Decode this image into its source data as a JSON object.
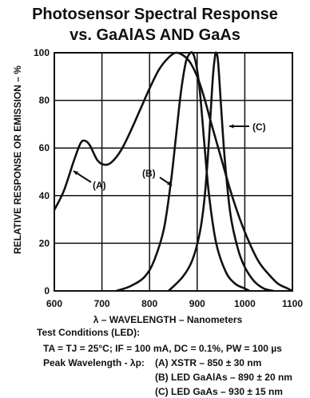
{
  "chart_data": {
    "type": "line",
    "title": "Photosensor Spectral Response",
    "subtitle": "vs. GaAlAS AND GaAs",
    "xlabel": "λ – WAVELENGTH – Nanometers",
    "ylabel": "RELATIVE RESPONSE OR EMISSION – %",
    "xlim": [
      600,
      1100
    ],
    "ylim": [
      0,
      100
    ],
    "x_ticks": [
      "600",
      "700",
      "800",
      "900",
      "1000",
      "1100"
    ],
    "y_ticks": [
      "0",
      "20",
      "40",
      "60",
      "80",
      "100"
    ],
    "grid": true,
    "series": [
      {
        "name": "(A)",
        "x": [
          600,
          620,
          640,
          655,
          665,
          675,
          690,
          705,
          720,
          740,
          760,
          780,
          800,
          820,
          840,
          855,
          870,
          885,
          900,
          915,
          930,
          950,
          970,
          990,
          1010,
          1030,
          1050,
          1070,
          1090,
          1100
        ],
        "y": [
          34,
          42,
          54,
          62,
          63,
          61,
          55,
          53,
          54,
          59,
          67,
          76,
          85,
          93,
          98,
          100,
          99,
          96,
          90,
          81,
          70,
          56,
          42,
          30,
          20,
          12,
          7,
          3,
          1,
          0
        ]
      },
      {
        "name": "(B)",
        "x": [
          730,
          760,
          790,
          810,
          830,
          845,
          855,
          865,
          875,
          882,
          890,
          897,
          905,
          915,
          925,
          940,
          960,
          980,
          1000,
          1010
        ],
        "y": [
          0,
          2,
          6,
          13,
          26,
          46,
          64,
          82,
          95,
          99,
          100,
          96,
          85,
          62,
          40,
          20,
          8,
          3,
          1,
          0
        ]
      },
      {
        "name": "(C)",
        "x": [
          840,
          870,
          890,
          905,
          915,
          922,
          928,
          933,
          937,
          940,
          944,
          950,
          958,
          970,
          985,
          1000,
          1020,
          1040,
          1060
        ],
        "y": [
          0,
          6,
          13,
          24,
          38,
          55,
          74,
          90,
          98,
          100,
          96,
          78,
          55,
          32,
          18,
          10,
          4,
          1,
          0
        ]
      }
    ]
  },
  "annotations": {
    "a": "(A)",
    "b": "(B)",
    "c": "(C)"
  },
  "notes": {
    "heading": "Test Conditions (LED):",
    "conditions": "TA = TJ = 25°C; IF = 100 mA, DC = 0.1%, PW = 100 µs",
    "peak_label": "Peak Wavelength - λp:",
    "peaks": [
      "(A)  XSTR – 850 ± 30 nm",
      "(B)  LED GaAlAs – 890 ± 20 nm",
      "(C)  LED GaAs – 930 ± 15 nm"
    ]
  },
  "colors": {
    "line": "#111111",
    "grid": "#111111"
  }
}
